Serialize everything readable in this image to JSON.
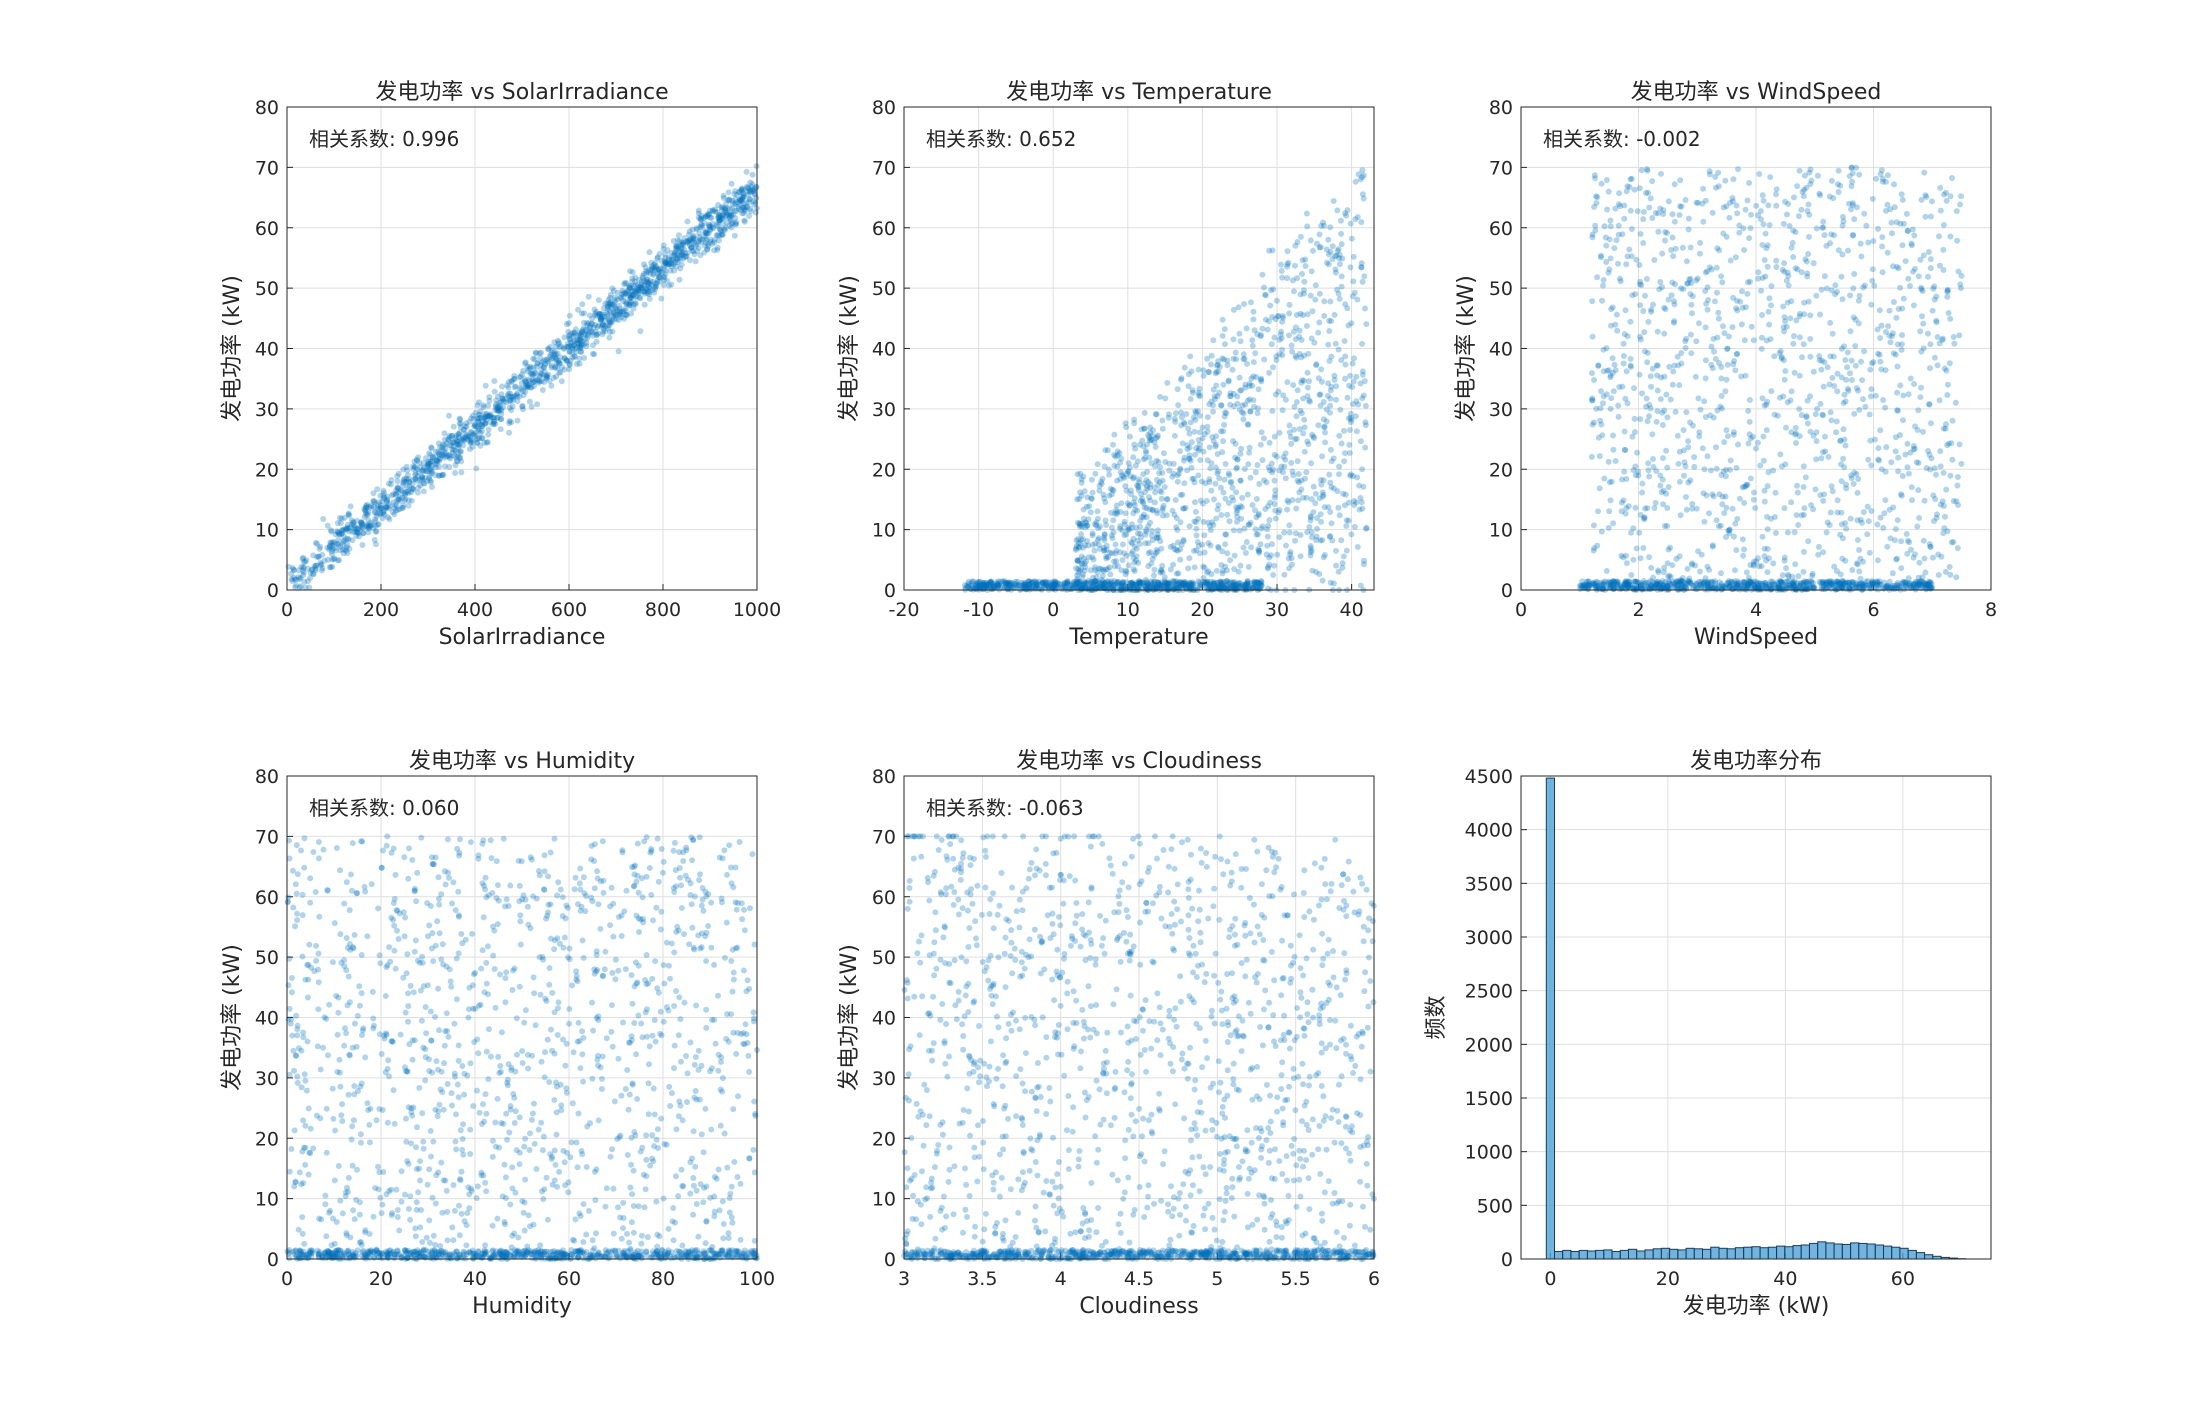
{
  "figure": {
    "background": "#ffffff",
    "point_color": "#0072BD",
    "bar_fill": "#4DA3D6",
    "bar_edge": "#1B3B5A"
  },
  "chart_data": [
    {
      "type": "scatter",
      "title": "发电功率 vs SolarIrradiance",
      "xlabel": "SolarIrradiance",
      "ylabel": "发电功率 (kW)",
      "xlim": [
        0,
        1000
      ],
      "ylim": [
        0,
        80
      ],
      "xticks": [
        "0",
        "200",
        "400",
        "600",
        "800",
        "1000"
      ],
      "yticks": [
        "0",
        "10",
        "20",
        "30",
        "40",
        "50",
        "60",
        "70",
        "80"
      ],
      "annotation": "相关系数: 0.996",
      "correlation": 0.996,
      "grid": true,
      "series": [
        {
          "shape": "linear",
          "slope": 0.066,
          "intercept": 0.5,
          "noise_sd": 1.8,
          "x_range": [
            0,
            1000
          ],
          "points": 1500
        }
      ]
    },
    {
      "type": "scatter",
      "title": "发电功率 vs Temperature",
      "xlabel": "Temperature",
      "ylabel": "发电功率 (kW)",
      "xlim": [
        -20,
        43
      ],
      "ylim": [
        0,
        80
      ],
      "xticks": [
        "-20",
        "-10",
        "0",
        "10",
        "20",
        "30",
        "40"
      ],
      "yticks": [
        "0",
        "10",
        "20",
        "30",
        "40",
        "50",
        "60",
        "70",
        "80"
      ],
      "annotation": "相关系数: 0.652",
      "correlation": 0.652,
      "grid": true,
      "series": [
        {
          "shape": "zero-band",
          "x_range": [
            -12,
            28
          ],
          "y_range": [
            0,
            1.5
          ],
          "points": 700
        },
        {
          "shape": "cloud",
          "x_range": [
            3,
            42
          ],
          "y_range": [
            0,
            70
          ],
          "y_trend": [
            10,
            65
          ],
          "points": 1300
        }
      ]
    },
    {
      "type": "scatter",
      "title": "发电功率 vs WindSpeed",
      "xlabel": "WindSpeed",
      "ylabel": "发电功率 (kW)",
      "xlim": [
        0,
        8
      ],
      "ylim": [
        0,
        80
      ],
      "xticks": [
        "0",
        "2",
        "4",
        "6",
        "8"
      ],
      "yticks": [
        "0",
        "10",
        "20",
        "30",
        "40",
        "50",
        "60",
        "70",
        "80"
      ],
      "annotation": "相关系数: -0.002",
      "correlation": -0.002,
      "grid": true,
      "series": [
        {
          "shape": "zero-band",
          "x_range": [
            1,
            7
          ],
          "y_range": [
            0,
            1.5
          ],
          "points": 700
        },
        {
          "shape": "cloud",
          "x_range": [
            1.2,
            7.5
          ],
          "y_range": [
            0,
            70
          ],
          "points": 1300
        }
      ]
    },
    {
      "type": "scatter",
      "title": "发电功率 vs Humidity",
      "xlabel": "Humidity",
      "ylabel": "发电功率 (kW)",
      "xlim": [
        0,
        100
      ],
      "ylim": [
        0,
        80
      ],
      "xticks": [
        "0",
        "20",
        "40",
        "60",
        "80",
        "100"
      ],
      "yticks": [
        "0",
        "10",
        "20",
        "30",
        "40",
        "50",
        "60",
        "70",
        "80"
      ],
      "annotation": "相关系数: 0.060",
      "correlation": 0.06,
      "grid": true,
      "series": [
        {
          "shape": "zero-band",
          "x_range": [
            0,
            100
          ],
          "y_range": [
            0,
            1.5
          ],
          "points": 700
        },
        {
          "shape": "cloud",
          "x_range": [
            0,
            100
          ],
          "y_range": [
            0,
            70
          ],
          "points": 1300
        }
      ]
    },
    {
      "type": "scatter",
      "title": "发电功率 vs Cloudiness",
      "xlabel": "Cloudiness",
      "ylabel": "发电功率 (kW)",
      "xlim": [
        3,
        6
      ],
      "ylim": [
        0,
        80
      ],
      "xticks": [
        "3",
        "3.5",
        "4",
        "4.5",
        "5",
        "5.5",
        "6"
      ],
      "yticks": [
        "0",
        "10",
        "20",
        "30",
        "40",
        "50",
        "60",
        "70",
        "80"
      ],
      "annotation": "相关系数: -0.063",
      "correlation": -0.063,
      "grid": true,
      "series": [
        {
          "shape": "zero-band",
          "x_range": [
            3,
            6
          ],
          "y_range": [
            0,
            1.5
          ],
          "points": 700
        },
        {
          "shape": "cloud",
          "x_range": [
            3,
            6
          ],
          "y_range": [
            0,
            70
          ],
          "y_trend": [
            70,
            60
          ],
          "points": 1300
        }
      ]
    },
    {
      "type": "bar",
      "title": "发电功率分布",
      "xlabel": "发电功率 (kW)",
      "ylabel": "频数",
      "xlim": [
        -5,
        75
      ],
      "ylim": [
        0,
        4500
      ],
      "xticks": [
        "0",
        "20",
        "40",
        "60"
      ],
      "yticks": [
        "0",
        "500",
        "1000",
        "1500",
        "2000",
        "2500",
        "3000",
        "3500",
        "4000",
        "4500"
      ],
      "grid": true,
      "bin_width": 1.4,
      "bin_start": -0.7,
      "values": [
        4480,
        70,
        80,
        70,
        80,
        75,
        80,
        85,
        70,
        80,
        90,
        75,
        85,
        95,
        100,
        90,
        85,
        100,
        95,
        90,
        110,
        100,
        95,
        105,
        110,
        115,
        105,
        110,
        120,
        115,
        125,
        130,
        145,
        160,
        150,
        140,
        135,
        150,
        145,
        140,
        130,
        120,
        110,
        100,
        80,
        60,
        40,
        25,
        15,
        8,
        3
      ]
    }
  ]
}
